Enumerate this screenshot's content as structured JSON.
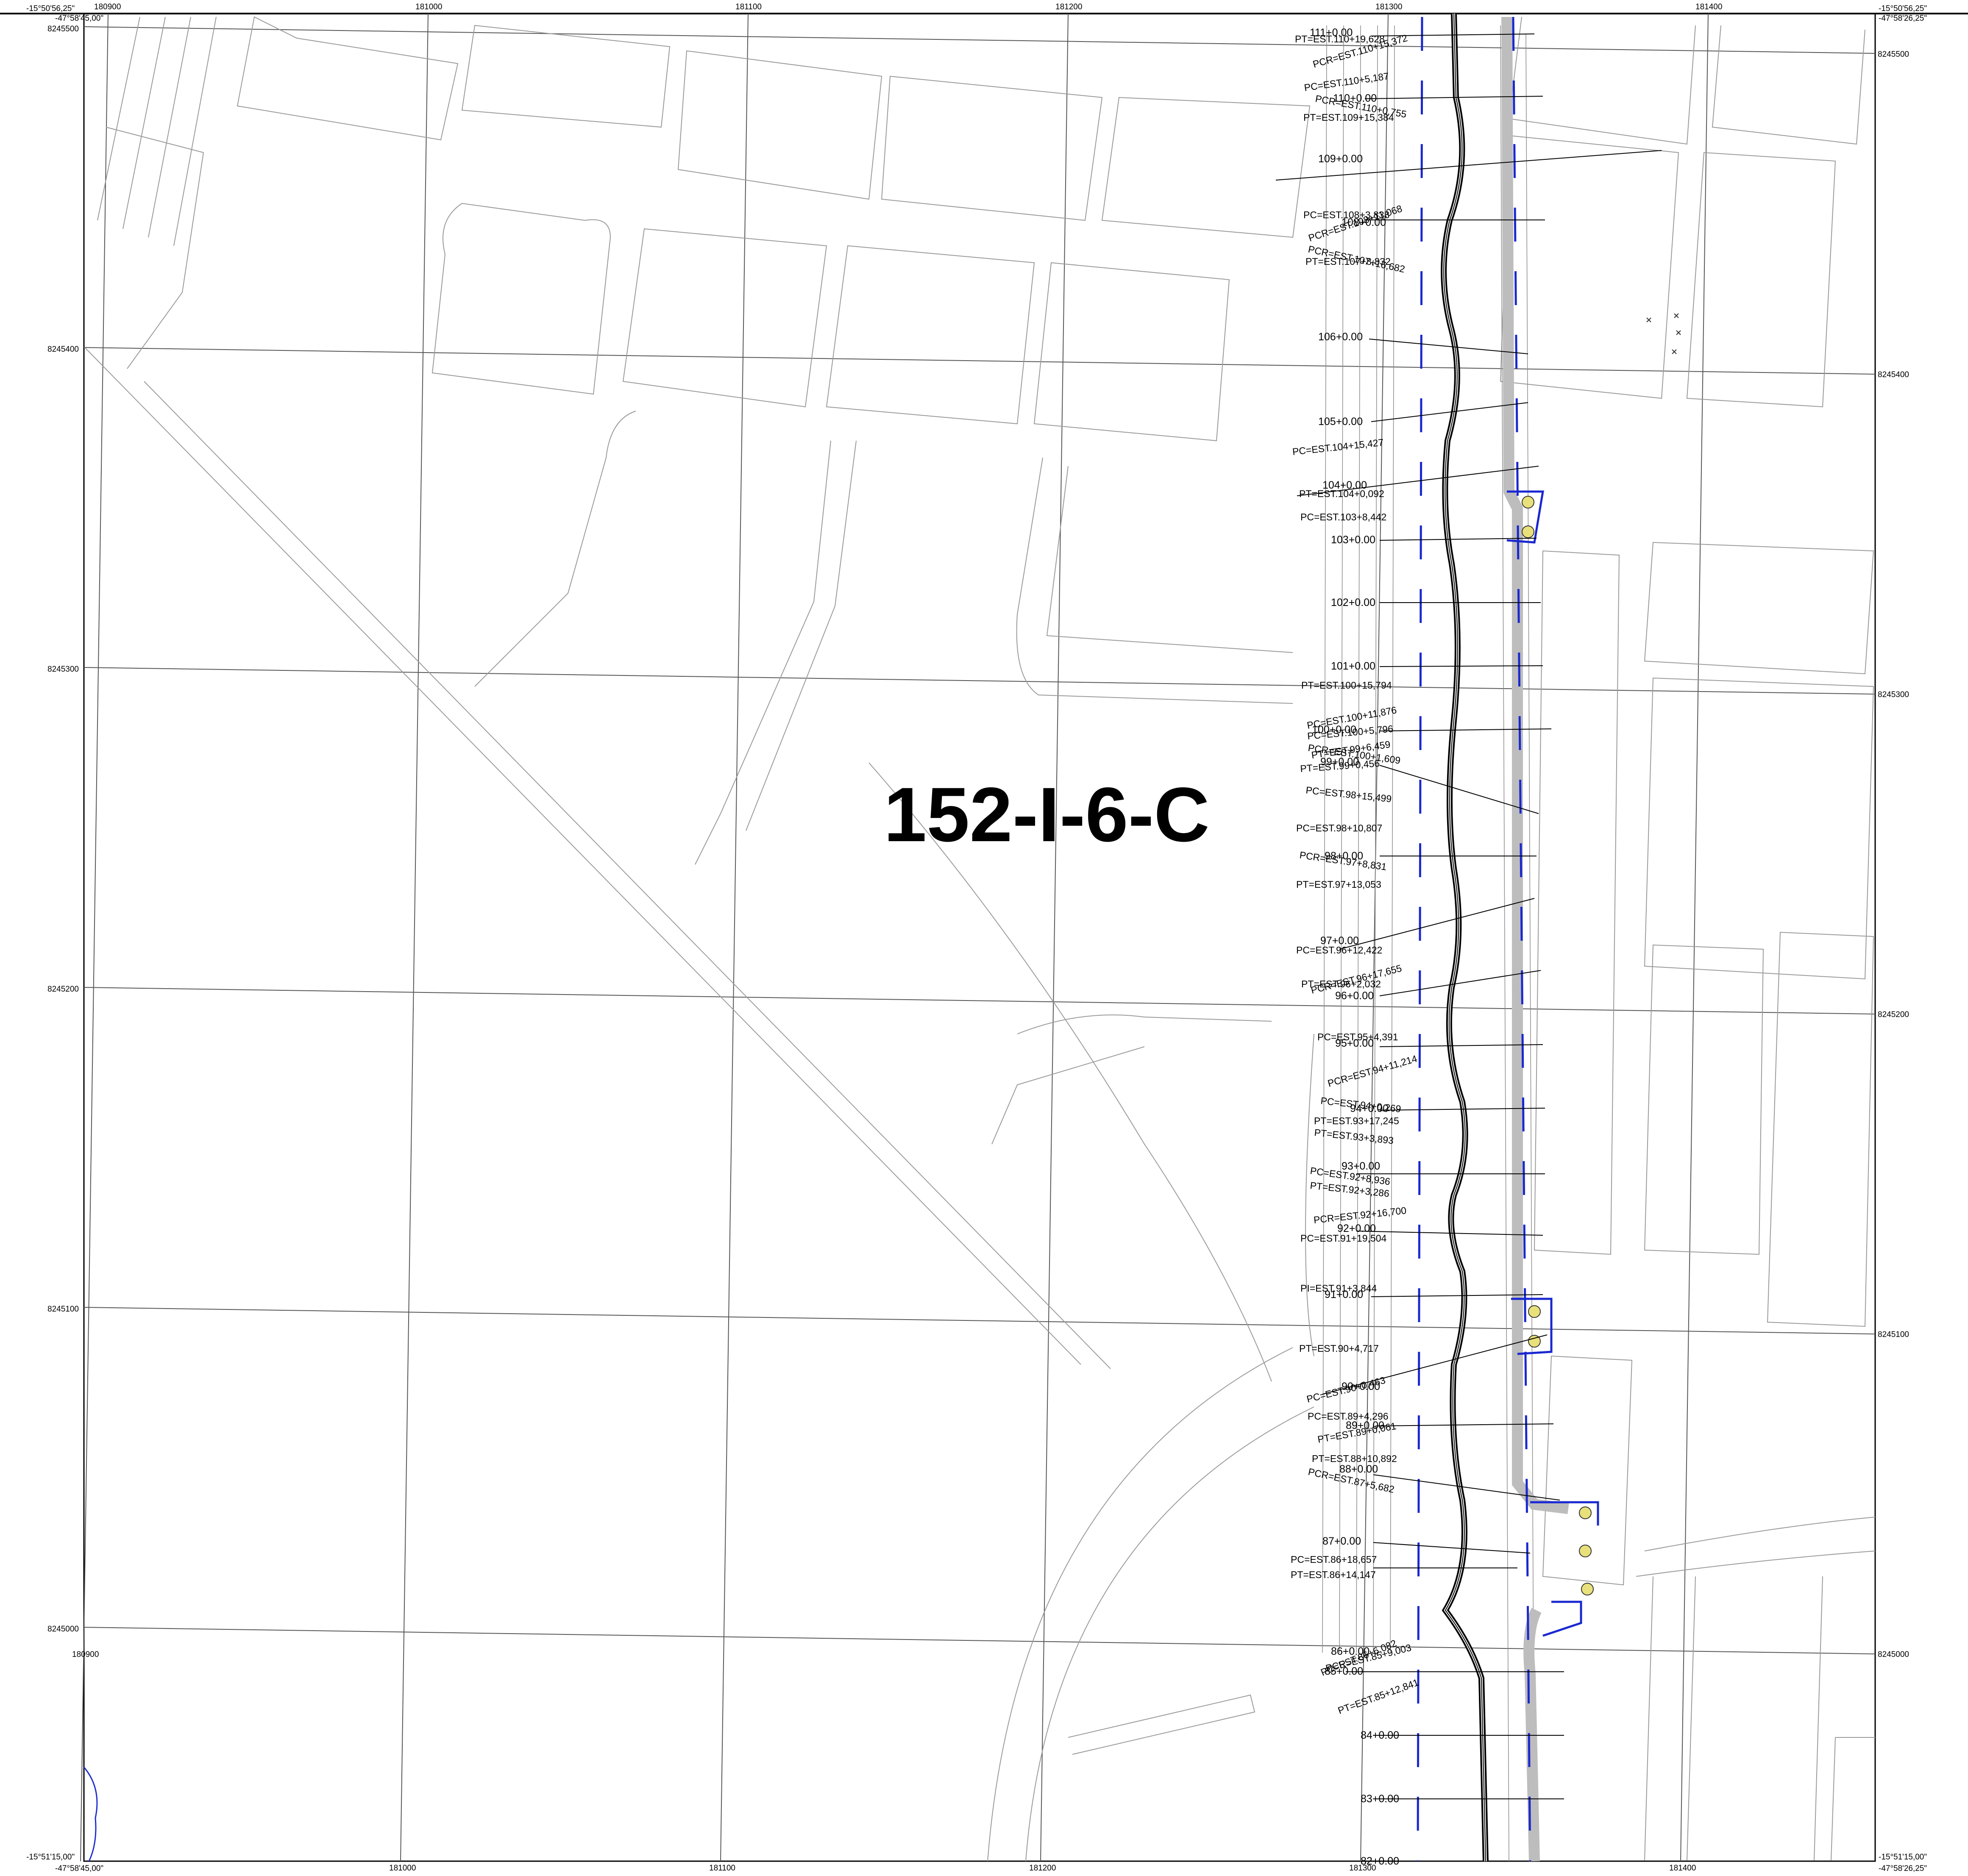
{
  "sheet": {
    "title": "152-I-6-C"
  },
  "frame": {
    "corner_top_left_lat": "-15°50'56,25\"",
    "corner_top_left_lon": "-47°58'45,00\"",
    "corner_top_right_lat": "-15°50'56,25\"",
    "corner_top_right_lon": "-47°58'26,25\"",
    "corner_bottom_left_lat": "-15°51'15,00\"",
    "corner_bottom_left_lon": "-47°58'45,00\"",
    "corner_bottom_right_lat": "-15°51'15,00\"",
    "corner_bottom_right_lon": "-47°58'26,25\""
  },
  "grid": {
    "eastings_top": [
      "180900",
      "181000",
      "181100",
      "181200",
      "181300",
      "181400"
    ],
    "eastings_bottom": [
      "181000",
      "181100",
      "181200",
      "181300",
      "181400"
    ],
    "northings_left": [
      "8245500",
      "8245400",
      "8245300",
      "8245200",
      "8245100",
      "8245000"
    ],
    "northings_right": [
      "8245500",
      "8245400",
      "8245300",
      "8245200",
      "8245100",
      "8245000"
    ],
    "inner_easting_label": "180900"
  },
  "stations": [
    "111+0.00",
    "110+0.00",
    "109+0.00",
    "108+0.00",
    "106+0.00",
    "105+0.00",
    "104+0.00",
    "103+0.00",
    "102+0.00",
    "101+0.00",
    "100+0.00",
    "99+0.00",
    "98+0.00",
    "97+0.00",
    "96+0.00",
    "95+0.00",
    "94+0.00",
    "93+0.00",
    "92+0.00",
    "91+0.00",
    "90+0.00",
    "89+0.00",
    "88+0.00",
    "87+0.00",
    "86+0.00",
    "85+0.00",
    "84+0.00",
    "83+0.00",
    "82+0.00"
  ],
  "curve_labels": [
    "PT=EST.110+19,628",
    "PCR=EST.110+15,372",
    "PC=EST.110+5,187",
    "PCR=EST.110+0,755",
    "PT=EST.109+15,384",
    "PC=EST.108+3,838",
    "PCR=EST.108+11,068",
    "PCR=EST.107+16,682",
    "PT=EST.107+8,832",
    "PC=EST.104+15,427",
    "PT=EST.104+0,092",
    "PC=EST.103+8,442",
    "PT=EST.100+15,794",
    "PC=EST.100+11,876",
    "PC=EST.100+5,796",
    "PCR=EST.100+1,609",
    "PT=EST.99+6,459",
    "PT=EST.99+0,456",
    "PC=EST.98+15,499",
    "PC=EST.98+10,807",
    "PCR=EST.97+8,831",
    "PT=EST.97+13,053",
    "PC=EST.96+12,422",
    "PCR=EST.96+17,655",
    "PT=EST.96+2,032",
    "PC=EST.95+4,391",
    "PCR=EST.94+11,214",
    "PC=EST.94+0,269",
    "PT=EST.93+17,245",
    "PT=EST.93+3,893",
    "PC=EST.92+8,936",
    "PT=EST.92+3,286",
    "PCR=EST.92+16,700",
    "PC=EST.91+19,504",
    "PI=EST.91+3,844",
    "PT=EST.90+4,717",
    "PC=EST.90+0,463",
    "PC=EST.89+4,296",
    "PT=EST.89+0,061",
    "PT=EST.88+10,892",
    "PCR=EST.87+5,682",
    "PC=EST.86+18,657",
    "PT=EST.86+14,147",
    "PC=EST.86+6,082",
    "PCR=EST.85+9,003",
    "PT=EST.85+12,841"
  ]
}
